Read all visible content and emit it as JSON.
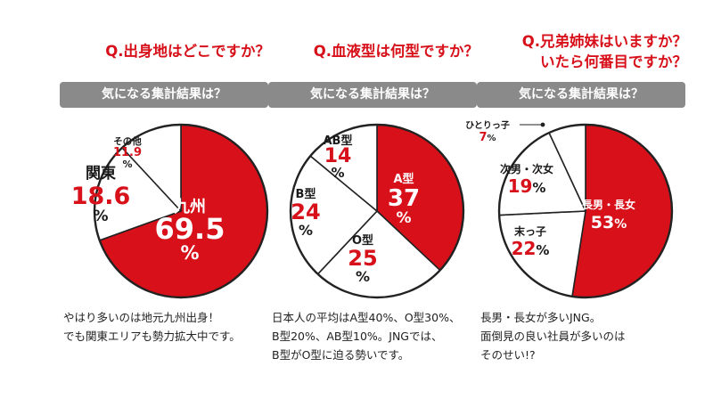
{
  "charts": [
    {
      "question": [
        "Q.出身地はどこですか？"
      ],
      "banner": "気になる集計結果は？",
      "caption": [
        "やはり多いのは地元九州出身！",
        "でも関東エリアも勢力拡大中です。"
      ]
    },
    {
      "question": [
        "Q.血液型は何型ですか？"
      ],
      "banner": "気になる集計結果は？",
      "caption": [
        "日本人の平均はA型40%、O型30%、",
        "B型20%、AB型10%。JNGでは、",
        "B型がO型に迫る勢いです。"
      ]
    },
    {
      "question": [
        "Q.兄弟姉妹はいますか？",
        "いたら何番目ですか？"
      ],
      "banner": "気になる集計結果は？",
      "caption": [
        "長男・長女が多いJNG。",
        "面倒見の良い社員が多いのは",
        "そのせい!?"
      ]
    }
  ],
  "colors": {
    "accent": "#d7101a",
    "banner": "#8a8a8a",
    "stroke": "#222222",
    "slice_fill": "#ffffff"
  },
  "chart_data": [
    {
      "type": "pie",
      "title": "Q.出身地はどこですか？",
      "slices": [
        {
          "label": "九州",
          "value": 69.5,
          "pct": "%",
          "highlight": true
        },
        {
          "label": "関東",
          "value": 18.6,
          "pct": "%",
          "highlight": false
        },
        {
          "label": "その他",
          "value": 11.9,
          "pct": "%",
          "highlight": false
        }
      ]
    },
    {
      "type": "pie",
      "title": "Q.血液型は何型ですか？",
      "slices": [
        {
          "label": "A型",
          "value": 37,
          "pct": "%",
          "highlight": true
        },
        {
          "label": "O型",
          "value": 25,
          "pct": "%",
          "highlight": false
        },
        {
          "label": "B型",
          "value": 24,
          "pct": "%",
          "highlight": false
        },
        {
          "label": "AB型",
          "value": 14,
          "pct": "%",
          "highlight": false
        }
      ]
    },
    {
      "type": "pie",
      "title": "Q.兄弟姉妹はいますか？ いたら何番目ですか？",
      "slices": [
        {
          "label": "長男・長女",
          "value": 53,
          "pct": "%",
          "highlight": true
        },
        {
          "label": "末っ子",
          "value": 22,
          "pct": "%",
          "highlight": false
        },
        {
          "label": "次男・次女",
          "value": 19,
          "pct": "%",
          "highlight": false
        },
        {
          "label": "ひとりっ子",
          "value": 7,
          "pct": "%",
          "highlight": false
        }
      ]
    }
  ]
}
